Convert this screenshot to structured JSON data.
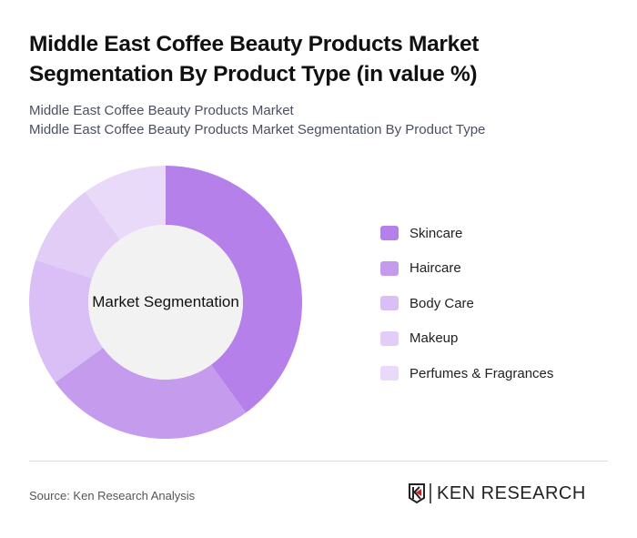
{
  "header": {
    "title": "Middle East Coffee Beauty Products Market Segmentation By Product Type (in value %)",
    "subtitle_line1": "Middle East Coffee Beauty Products Market",
    "subtitle_line2": "Middle East Coffee Beauty Products Market Segmentation By Product Type"
  },
  "chart": {
    "center_label": "Market Segmentation"
  },
  "legend": [
    {
      "label": "Skincare",
      "color": "#b580ea"
    },
    {
      "label": "Haircare",
      "color": "#c59bee"
    },
    {
      "label": "Body Care",
      "color": "#d9bff5"
    },
    {
      "label": "Makeup",
      "color": "#e2cdf6"
    },
    {
      "label": "Perfumes & Fragrances",
      "color": "#e9dafa"
    }
  ],
  "footer": {
    "source": "Source: Ken Research Analysis",
    "logo_text": "KEN RESEARCH"
  },
  "chart_data": {
    "type": "pie",
    "title": "Middle East Coffee Beauty Products Market Segmentation By Product Type (in value %)",
    "subtitle": "Middle East Coffee Beauty Products Market Segmentation By Product Type",
    "center_label": "Market Segmentation",
    "donut": true,
    "categories": [
      "Skincare",
      "Haircare",
      "Body Care",
      "Makeup",
      "Perfumes & Fragrances"
    ],
    "values": [
      40,
      25,
      15,
      10,
      10
    ],
    "colors": [
      "#b580ea",
      "#c59bee",
      "#d9bff5",
      "#e2cdf6",
      "#e9dafa"
    ],
    "legend_position": "right",
    "unit": "%"
  }
}
